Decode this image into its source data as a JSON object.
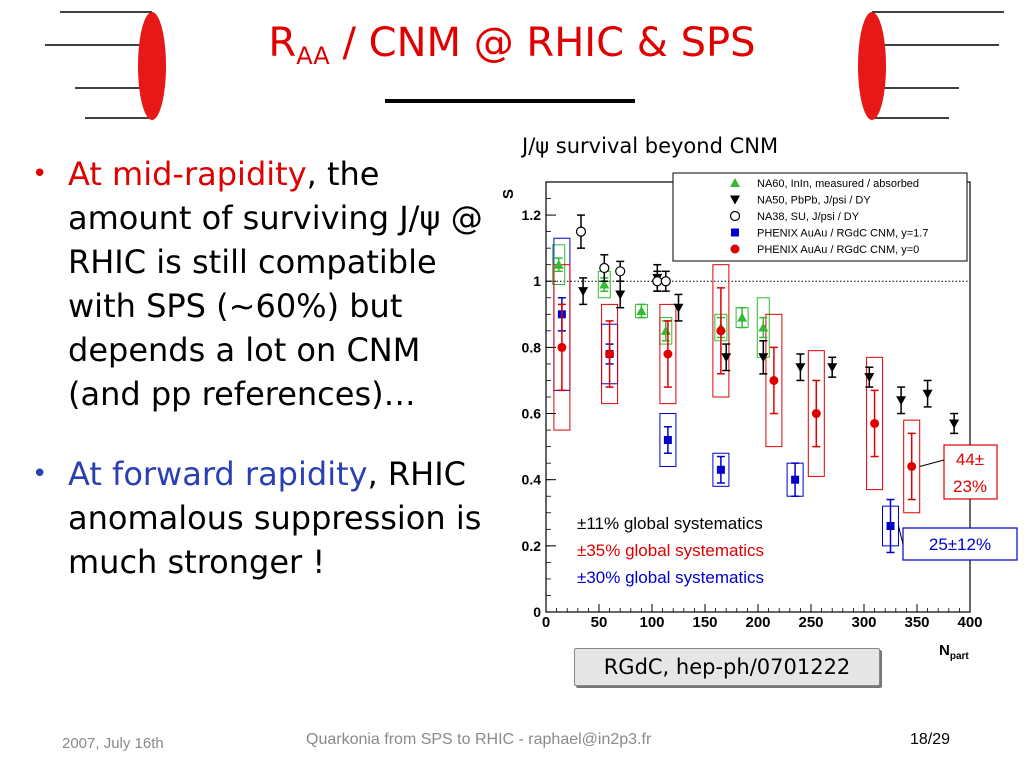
{
  "slide": {
    "title_main": "R",
    "title_sub": "AA",
    "title_rest": " / CNM @ RHIC & SPS",
    "bullets": [
      {
        "highlight": "At mid-rapidity",
        "text": ", the amount of surviving J/ψ @ RHIC is still compatible with SPS (~60%) but depends a lot on CNM (and pp references)…"
      },
      {
        "highlight": "At forward rapidity",
        "text": ", RHIC anomalous suppression is much stronger !"
      }
    ],
    "chart_caption": "J/ψ survival beyond CNM",
    "reference": "RGdC, hep-ph/0701222"
  },
  "footer": {
    "date": "2007, July 16th",
    "center": "Quarkonia from SPS to RHIC - raphael@in2p3.fr",
    "page": "18/29"
  },
  "colors": {
    "title": "#e00000",
    "blue_text": "#2a3fb4",
    "phenix_mid": "#e00000",
    "phenix_fwd": "#0000cc",
    "na60": "#33bb33"
  },
  "chart_data": {
    "type": "scatter",
    "title": "J/ψ survival beyond CNM",
    "xlabel": "N",
    "xlabel_sub": "part",
    "ylabel": "S",
    "xlim": [
      0,
      400
    ],
    "ylim": [
      0,
      1.3
    ],
    "xticks": [
      "0",
      "50",
      "100",
      "150",
      "200",
      "250",
      "300",
      "350",
      "400"
    ],
    "yticks": [
      "0",
      "0.2",
      "0.4",
      "0.6",
      "0.8",
      "1",
      "1.2"
    ],
    "reference_line": 1,
    "legend_position": "top-right",
    "series": [
      {
        "name": "NA60, InIn, measured / absorbed",
        "marker": "triangle-up",
        "color": "#33bb33",
        "points": [
          {
            "x": 12,
            "y": 1.05,
            "err": 0.02,
            "sys": 0.06
          },
          {
            "x": 55,
            "y": 0.99,
            "err": 0.02,
            "sys": 0.04
          },
          {
            "x": 90,
            "y": 0.91,
            "err": 0.02,
            "sys": 0.02
          },
          {
            "x": 113,
            "y": 0.85,
            "err": 0.03,
            "sys": 0.04
          },
          {
            "x": 165,
            "y": 0.86,
            "err": 0.03,
            "sys": 0.04
          },
          {
            "x": 185,
            "y": 0.89,
            "err": 0.03,
            "sys": 0.03
          },
          {
            "x": 205,
            "y": 0.86,
            "err": 0.03,
            "sys": 0.09
          }
        ]
      },
      {
        "name": "NA50, PbPb, J/psi / DY",
        "marker": "triangle-down",
        "color": "#000000",
        "points": [
          {
            "x": 35,
            "y": 0.97,
            "err": 0.04
          },
          {
            "x": 70,
            "y": 0.96,
            "err": 0.04
          },
          {
            "x": 105,
            "y": 1.01,
            "err": 0.04
          },
          {
            "x": 125,
            "y": 0.92,
            "err": 0.04
          },
          {
            "x": 170,
            "y": 0.77,
            "err": 0.04
          },
          {
            "x": 205,
            "y": 0.77,
            "err": 0.05
          },
          {
            "x": 240,
            "y": 0.74,
            "err": 0.04
          },
          {
            "x": 270,
            "y": 0.74,
            "err": 0.03
          },
          {
            "x": 305,
            "y": 0.71,
            "err": 0.03
          },
          {
            "x": 335,
            "y": 0.64,
            "err": 0.04
          },
          {
            "x": 360,
            "y": 0.66,
            "err": 0.04
          },
          {
            "x": 385,
            "y": 0.57,
            "err": 0.03
          }
        ]
      },
      {
        "name": "NA38, SU, J/psi / DY",
        "marker": "circle-open",
        "color": "#000000",
        "points": [
          {
            "x": 33,
            "y": 1.15,
            "err": 0.05
          },
          {
            "x": 55,
            "y": 1.04,
            "err": 0.04
          },
          {
            "x": 70,
            "y": 1.03,
            "err": 0.03
          },
          {
            "x": 105,
            "y": 1.0,
            "err": 0.03
          },
          {
            "x": 113,
            "y": 1.0,
            "err": 0.03
          }
        ]
      },
      {
        "name": "PHENIX AuAu / RGdC CNM, y=1.7",
        "marker": "square",
        "color": "#0000cc",
        "points": [
          {
            "x": 15,
            "y": 0.9,
            "err": 0.05,
            "sys": 0.23
          },
          {
            "x": 60,
            "y": 0.78,
            "err": 0.03,
            "sys": 0.09
          },
          {
            "x": 115,
            "y": 0.52,
            "err": 0.04,
            "sys": 0.08
          },
          {
            "x": 165,
            "y": 0.43,
            "err": 0.04,
            "sys": 0.05
          },
          {
            "x": 235,
            "y": 0.4,
            "err": 0.05,
            "sys": 0.05
          },
          {
            "x": 325,
            "y": 0.26,
            "err": 0.08,
            "sys": 0.06
          }
        ]
      },
      {
        "name": "PHENIX AuAu / RGdC CNM, y=0",
        "marker": "circle",
        "color": "#e00000",
        "points": [
          {
            "x": 15,
            "y": 0.8,
            "err": 0.13,
            "sys": 0.25
          },
          {
            "x": 60,
            "y": 0.78,
            "err": 0.1,
            "sys": 0.15
          },
          {
            "x": 115,
            "y": 0.78,
            "err": 0.1,
            "sys": 0.15
          },
          {
            "x": 165,
            "y": 0.85,
            "err": 0.13,
            "sys": 0.2
          },
          {
            "x": 215,
            "y": 0.7,
            "err": 0.1,
            "sys": 0.2
          },
          {
            "x": 255,
            "y": 0.6,
            "err": 0.1,
            "sys": 0.19
          },
          {
            "x": 310,
            "y": 0.57,
            "err": 0.1,
            "sys": 0.2
          },
          {
            "x": 345,
            "y": 0.44,
            "err": 0.1,
            "sys": 0.14
          }
        ]
      }
    ],
    "annotations": [
      {
        "text": "±11% global systematics",
        "color": "#000000"
      },
      {
        "text": "±35% global systematics",
        "color": "#e00000"
      },
      {
        "text": "±30% global systematics",
        "color": "#0000cc"
      },
      {
        "text": "44±",
        "text2": "23%",
        "color": "#e00000"
      },
      {
        "text": "25±12%",
        "color": "#0000cc"
      }
    ]
  }
}
